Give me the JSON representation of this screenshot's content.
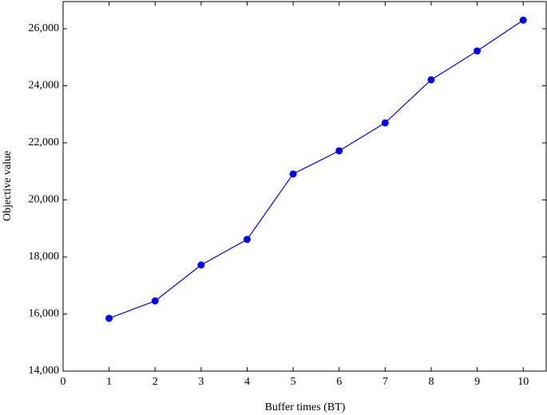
{
  "chart_data": {
    "type": "line",
    "x_label": "Buffer times (BT)",
    "y_label": "Objective value",
    "x": [
      1,
      2,
      3,
      4,
      5,
      6,
      7,
      8,
      9,
      10
    ],
    "series": [
      {
        "name": "Objective value",
        "color": "#0000ff",
        "values": [
          15850,
          16460,
          17720,
          18615,
          20910,
          21720,
          22700,
          24210,
          25220,
          26300
        ]
      }
    ],
    "xlim": [
      0,
      10.5
    ],
    "ylim": [
      14000,
      26950
    ],
    "xticks": [
      0,
      1,
      2,
      3,
      4,
      5,
      6,
      7,
      8,
      9,
      10
    ],
    "yticks": [
      {
        "value": 14000,
        "label": "14,000"
      },
      {
        "value": 16000,
        "label": "16,000"
      },
      {
        "value": 18000,
        "label": "18,000"
      },
      {
        "value": 20000,
        "label": "20,000"
      },
      {
        "value": 22000,
        "label": "22,000"
      },
      {
        "value": 24000,
        "label": "24,000"
      },
      {
        "value": 26000,
        "label": "26,000"
      }
    ],
    "grid": false
  }
}
